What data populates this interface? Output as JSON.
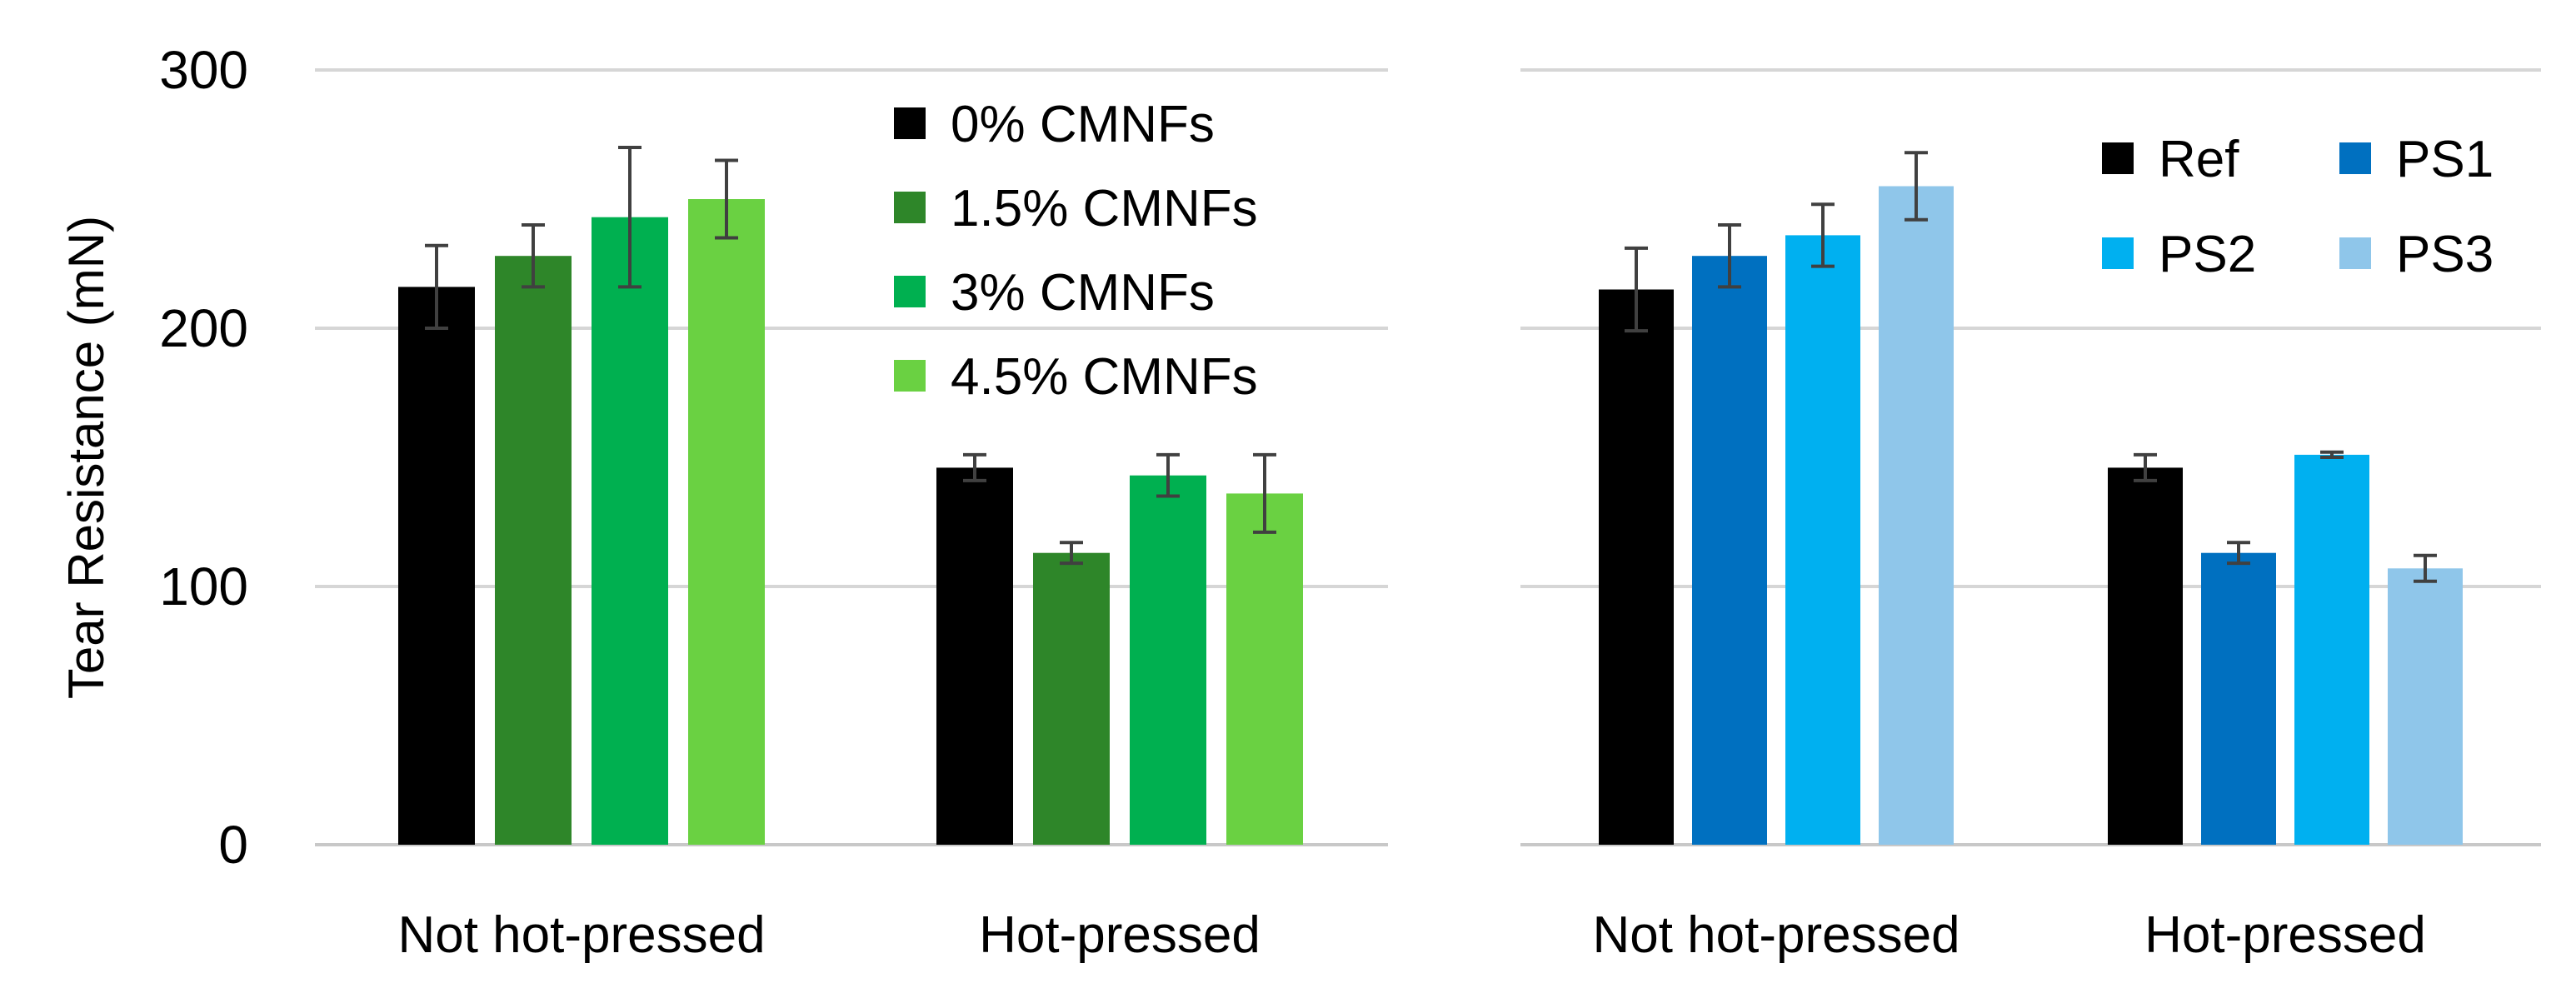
{
  "chart_data": [
    {
      "type": "bar",
      "ylabel": "Tear Resistance (mN)",
      "ylim": [
        0,
        300
      ],
      "yticks": [
        0,
        100,
        200,
        300
      ],
      "categories": [
        "Not hot-pressed",
        "Hot-pressed"
      ],
      "grid": true,
      "legend_position": "top-right",
      "series": [
        {
          "name": "0% CMNFs",
          "color": "#000000",
          "values": [
            216,
            146
          ],
          "errors": [
            16,
            5
          ]
        },
        {
          "name": "1.5% CMNFs",
          "color": "#2e8629",
          "values": [
            228,
            113
          ],
          "errors": [
            12,
            4
          ]
        },
        {
          "name": "3% CMNFs",
          "color": "#00b050",
          "values": [
            243,
            143
          ],
          "errors": [
            27,
            8
          ]
        },
        {
          "name": "4.5% CMNFs",
          "color": "#6ad142",
          "values": [
            250,
            136
          ],
          "errors": [
            15,
            15
          ]
        }
      ]
    },
    {
      "type": "bar",
      "ylim": [
        0,
        300
      ],
      "categories": [
        "Not hot-pressed",
        "Hot-pressed"
      ],
      "grid": true,
      "legend_position": "top-right",
      "series": [
        {
          "name": "Ref",
          "color": "#000000",
          "values": [
            215,
            146
          ],
          "errors": [
            16,
            5
          ]
        },
        {
          "name": "PS1",
          "color": "#0070c0",
          "values": [
            228,
            113
          ],
          "errors": [
            12,
            4
          ]
        },
        {
          "name": "PS2",
          "color": "#00b0f0",
          "values": [
            236,
            151
          ],
          "errors": [
            12,
            1
          ]
        },
        {
          "name": "PS3",
          "color": "#8fc6ea",
          "values": [
            255,
            107
          ],
          "errors": [
            13,
            5
          ]
        }
      ]
    }
  ]
}
